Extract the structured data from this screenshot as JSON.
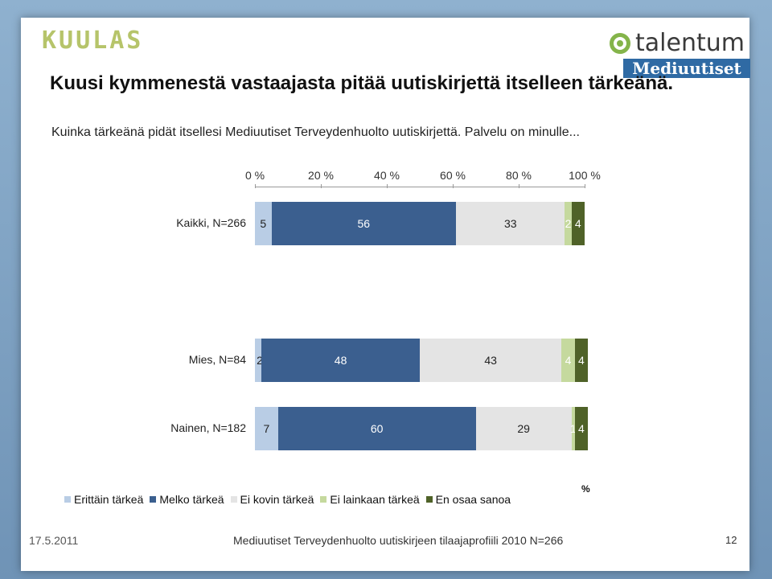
{
  "header": {
    "brand_left": "KUULAS",
    "brand_right": "talentum",
    "brand_right_sub": "Mediuutiset"
  },
  "title": "Kuusi kymmenestä vastaajasta pitää uutiskirjettä itselleen tärkeänä.",
  "subtitle": "Kuinka tärkeänä pidät itsellesi Mediuutiset Terveydenhuolto uutiskirjettä. Palvelu on minulle...",
  "chart_data": {
    "type": "bar",
    "orientation": "horizontal",
    "stacked": true,
    "x_ticks": [
      "0 %",
      "20 %",
      "40 %",
      "60 %",
      "80 %",
      "100 %"
    ],
    "xlim": [
      0,
      100
    ],
    "xlabel": "%",
    "categories": [
      "Kaikki, N=266",
      "Mies, N=84",
      "Nainen, N=182"
    ],
    "series": [
      {
        "name": "Erittäin tärkeä",
        "color": "#b9cde5",
        "values": [
          5,
          2,
          7
        ]
      },
      {
        "name": "Melko tärkeä",
        "color": "#3b5f8f",
        "values": [
          56,
          48,
          60
        ]
      },
      {
        "name": "Ei kovin tärkeä",
        "color": "#e4e4e4",
        "values": [
          33,
          43,
          29
        ]
      },
      {
        "name": "Ei lainkaan tärkeä",
        "color": "#c5d99e",
        "values": [
          2,
          4,
          1
        ]
      },
      {
        "name": "En osaa sanoa",
        "color": "#4f6228",
        "values": [
          4,
          4,
          4
        ]
      }
    ],
    "legend": "bottom"
  },
  "footer": {
    "date": "17.5.2011",
    "text": "Mediuutiset Terveydenhuolto uutiskirjeen tilaajaprofiili 2010 N=266",
    "page": "12"
  }
}
